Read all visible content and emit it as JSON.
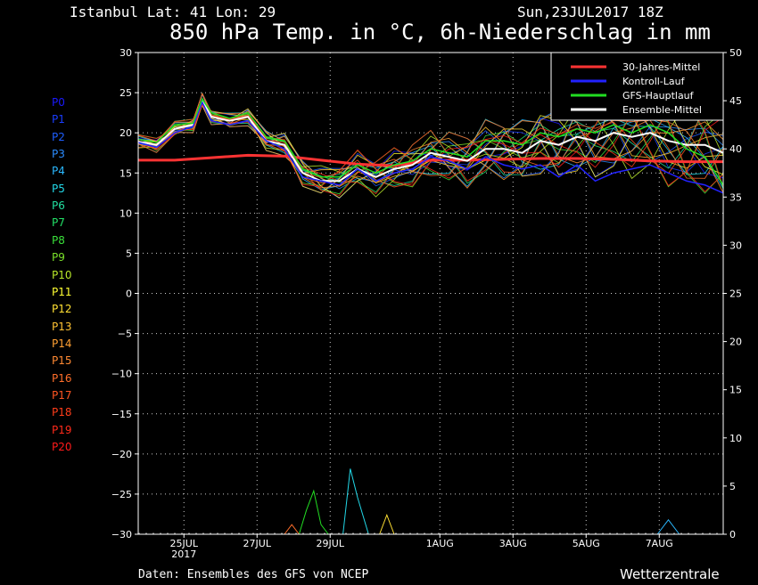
{
  "header": {
    "location": "Istanbul  Lat: 41 Lon: 29",
    "run": "Sun,23JUL2017 18Z",
    "title": "850 hPa Temp. in °C, 6h-Niederschlag in mm"
  },
  "footer": {
    "source": "Daten: Ensembles des GFS von NCEP",
    "brand": "Wetterzentrale"
  },
  "members": [
    {
      "label": "P0",
      "color": "#1a1aff"
    },
    {
      "label": "P1",
      "color": "#1a3dff"
    },
    {
      "label": "P2",
      "color": "#1e5eff"
    },
    {
      "label": "P3",
      "color": "#2b8cff"
    },
    {
      "label": "P4",
      "color": "#2ab8ff"
    },
    {
      "label": "P5",
      "color": "#22d8e8"
    },
    {
      "label": "P6",
      "color": "#22e0a0"
    },
    {
      "label": "P7",
      "color": "#22e066"
    },
    {
      "label": "P8",
      "color": "#3ae03a"
    },
    {
      "label": "P9",
      "color": "#7ae02a"
    },
    {
      "label": "P10",
      "color": "#b8e82a"
    },
    {
      "label": "P11",
      "color": "#ffff33"
    },
    {
      "label": "P12",
      "color": "#ffe033"
    },
    {
      "label": "P13",
      "color": "#ffc233"
    },
    {
      "label": "P14",
      "color": "#ffa033"
    },
    {
      "label": "P15",
      "color": "#ff8a33"
    },
    {
      "label": "P16",
      "color": "#ff6e2a"
    },
    {
      "label": "P17",
      "color": "#ff5522"
    },
    {
      "label": "P18",
      "color": "#ff3d1a"
    },
    {
      "label": "P19",
      "color": "#ff2a1a"
    },
    {
      "label": "P20",
      "color": "#ff1a1a"
    }
  ],
  "chart_data": {
    "type": "line",
    "x_ticks": [
      {
        "day": 1.25,
        "label": "25JUL",
        "sub": "2017"
      },
      {
        "day": 3.25,
        "label": "27JUL"
      },
      {
        "day": 5.25,
        "label": "29JUL"
      },
      {
        "day": 8.25,
        "label": "1AUG"
      },
      {
        "day": 10.25,
        "label": "3AUG"
      },
      {
        "day": 12.25,
        "label": "5AUG"
      },
      {
        "day": 14.25,
        "label": "7AUG"
      }
    ],
    "xlim": [
      0,
      16
    ],
    "grid": true,
    "left_axis": {
      "ylim": [
        -30,
        30
      ],
      "ticks": [
        30,
        25,
        20,
        15,
        10,
        5,
        0,
        -5,
        -10,
        -15,
        -20,
        -25,
        -30
      ]
    },
    "right_axis": {
      "ylim": [
        0,
        50
      ],
      "ticks": [
        50,
        45,
        40,
        35,
        30,
        25,
        20,
        15,
        10,
        5,
        0
      ]
    },
    "legend": {
      "placement": "top-right",
      "entries": [
        {
          "label": "30-Jahres-Mittel",
          "color": "#ff3333"
        },
        {
          "label": "Kontroll-Lauf",
          "color": "#2222ff"
        },
        {
          "label": "GFS-Hauptlauf",
          "color": "#22dd22"
        },
        {
          "label": "Ensemble-Mittel",
          "color": "#ffffff"
        }
      ]
    },
    "series": [
      {
        "name": "30-Jahres-Mittel",
        "color": "#ff3333",
        "width": 3,
        "x": [
          0,
          1,
          2,
          3,
          4,
          5,
          6,
          7,
          8,
          9,
          10,
          11,
          12,
          13,
          14,
          15,
          16
        ],
        "y": [
          16.6,
          16.6,
          16.9,
          17.2,
          17.1,
          16.6,
          16.1,
          15.9,
          16.6,
          16.6,
          16.7,
          16.8,
          16.8,
          16.7,
          16.5,
          16.4,
          16.4
        ]
      },
      {
        "name": "Ensemble-Mittel",
        "color": "#ffffff",
        "width": 2,
        "x": [
          0,
          0.5,
          1,
          1.5,
          1.75,
          2,
          2.5,
          3,
          3.5,
          4,
          4.5,
          5,
          5.5,
          6,
          6.5,
          7,
          7.5,
          8,
          8.5,
          9,
          9.5,
          10,
          10.5,
          11,
          11.5,
          12,
          12.5,
          13,
          13.5,
          14,
          14.5,
          15,
          15.5,
          16
        ],
        "y": [
          18.9,
          18.5,
          20.5,
          21,
          24,
          22,
          21.5,
          22,
          19,
          18.5,
          15,
          14,
          14,
          15.5,
          14.5,
          15.5,
          16,
          17.5,
          17,
          16.5,
          18,
          18,
          17.5,
          19,
          18.5,
          19.5,
          19,
          20,
          19.5,
          20,
          19,
          18.5,
          18.5,
          17.5
        ]
      },
      {
        "name": "Kontroll-Lauf",
        "color": "#2222ff",
        "width": 1.5,
        "x": [
          0,
          0.5,
          1,
          1.5,
          1.75,
          2,
          2.5,
          3,
          3.5,
          4,
          4.5,
          5,
          5.5,
          6,
          6.5,
          7,
          7.5,
          8,
          8.5,
          9,
          9.5,
          10,
          10.5,
          11,
          11.5,
          12,
          12.5,
          13,
          13.5,
          14,
          14.5,
          15,
          15.5,
          16
        ],
        "y": [
          18.8,
          18.2,
          20,
          20.8,
          23.8,
          21.5,
          21,
          21.5,
          19,
          18,
          14.5,
          14,
          13.5,
          15.5,
          14,
          15,
          15.5,
          17,
          16.5,
          15.5,
          17,
          16,
          15.5,
          16,
          14.5,
          16,
          14,
          15,
          15.5,
          16,
          15,
          14,
          13.5,
          12.5
        ]
      },
      {
        "name": "GFS-Hauptlauf",
        "color": "#22dd22",
        "width": 1.5,
        "x": [
          0,
          0.5,
          1,
          1.5,
          1.75,
          2,
          2.5,
          3,
          3.5,
          4,
          4.5,
          5,
          5.5,
          6,
          6.5,
          7,
          7.5,
          8,
          8.5,
          9,
          9.5,
          10,
          10.5,
          11,
          11.5,
          12,
          12.5,
          13,
          13.5,
          14,
          14.5,
          15,
          15.5,
          16
        ],
        "y": [
          19.2,
          18.8,
          21,
          21.2,
          24.2,
          22.5,
          21.8,
          22.5,
          19.5,
          19,
          15.5,
          14.5,
          14.5,
          16,
          15,
          16,
          16.5,
          18,
          17.5,
          17,
          19,
          19,
          18.5,
          20,
          19.5,
          20.5,
          20,
          21,
          20,
          21,
          20,
          18,
          17,
          13.5
        ]
      }
    ],
    "precip": [
      {
        "color": "#22dd22",
        "x": [
          4.4,
          4.6,
          4.8,
          5.0,
          5.2
        ],
        "y": [
          0,
          2.5,
          4.5,
          1,
          0
        ]
      },
      {
        "color": "#22d8e8",
        "x": [
          5.6,
          5.8,
          6.0,
          6.3
        ],
        "y": [
          0,
          6.8,
          3.8,
          0
        ]
      },
      {
        "color": "#ffe033",
        "x": [
          6.6,
          6.8,
          7.0
        ],
        "y": [
          0,
          2,
          0
        ]
      },
      {
        "color": "#ff6e2a",
        "x": [
          4.0,
          4.2,
          4.4
        ],
        "y": [
          0,
          1,
          0
        ]
      },
      {
        "color": "#2ab8ff",
        "x": [
          14.2,
          14.5,
          14.8
        ],
        "y": [
          0,
          1.5,
          0
        ]
      }
    ]
  }
}
